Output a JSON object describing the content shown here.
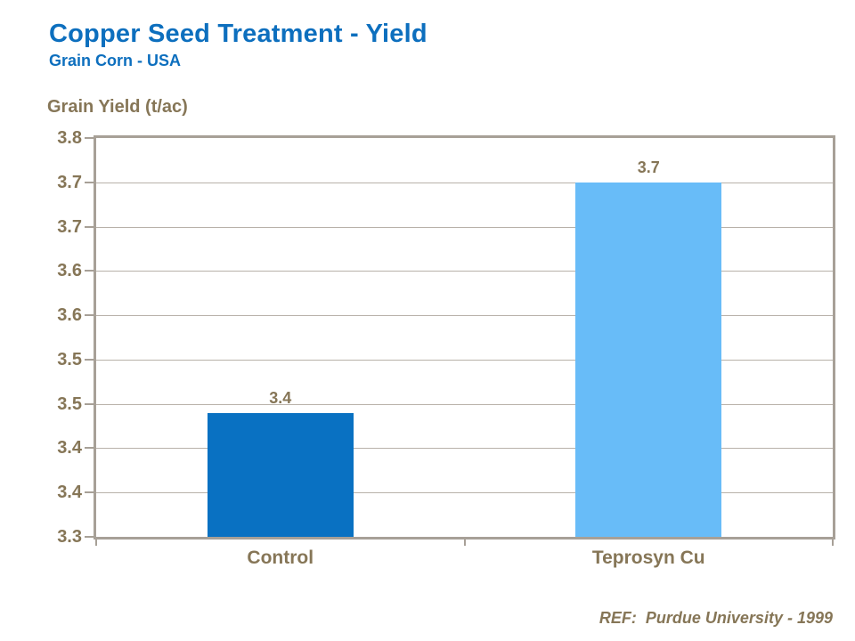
{
  "header": {
    "title": "Copper Seed Treatment - Yield",
    "subtitle": "Grain Corn - USA"
  },
  "chart_data": {
    "type": "bar",
    "title": "Copper Seed Treatment - Yield",
    "subtitle": "Grain Corn - USA",
    "ylabel": "Grain Yield (t/ac)",
    "xlabel": "",
    "categories": [
      "Control",
      "Teprosyn Cu"
    ],
    "values": [
      3.44,
      3.7
    ],
    "data_labels": [
      "3.4",
      "3.7"
    ],
    "ylim": [
      3.3,
      3.75
    ],
    "ytick_step": 0.05,
    "ytick_labels_bottom_to_top": [
      "3.3",
      "3.4",
      "3.4",
      "3.5",
      "3.5",
      "3.6",
      "3.6",
      "3.7",
      "3.7",
      "3.8"
    ],
    "grid": true,
    "legend": false,
    "bar_colors": [
      "#0971C2",
      "#68BCF8"
    ]
  },
  "footer": {
    "reference": "REF:  Purdue University - 1999"
  },
  "colors": {
    "title_blue": "#0D6FBE",
    "taupe_text": "#867657",
    "axis_line": "#A7A097",
    "gridline": "#B8B1A9",
    "bar_control": "#0971C2",
    "bar_teprosyn": "#68BCF8",
    "background": "#FFFFFF"
  }
}
